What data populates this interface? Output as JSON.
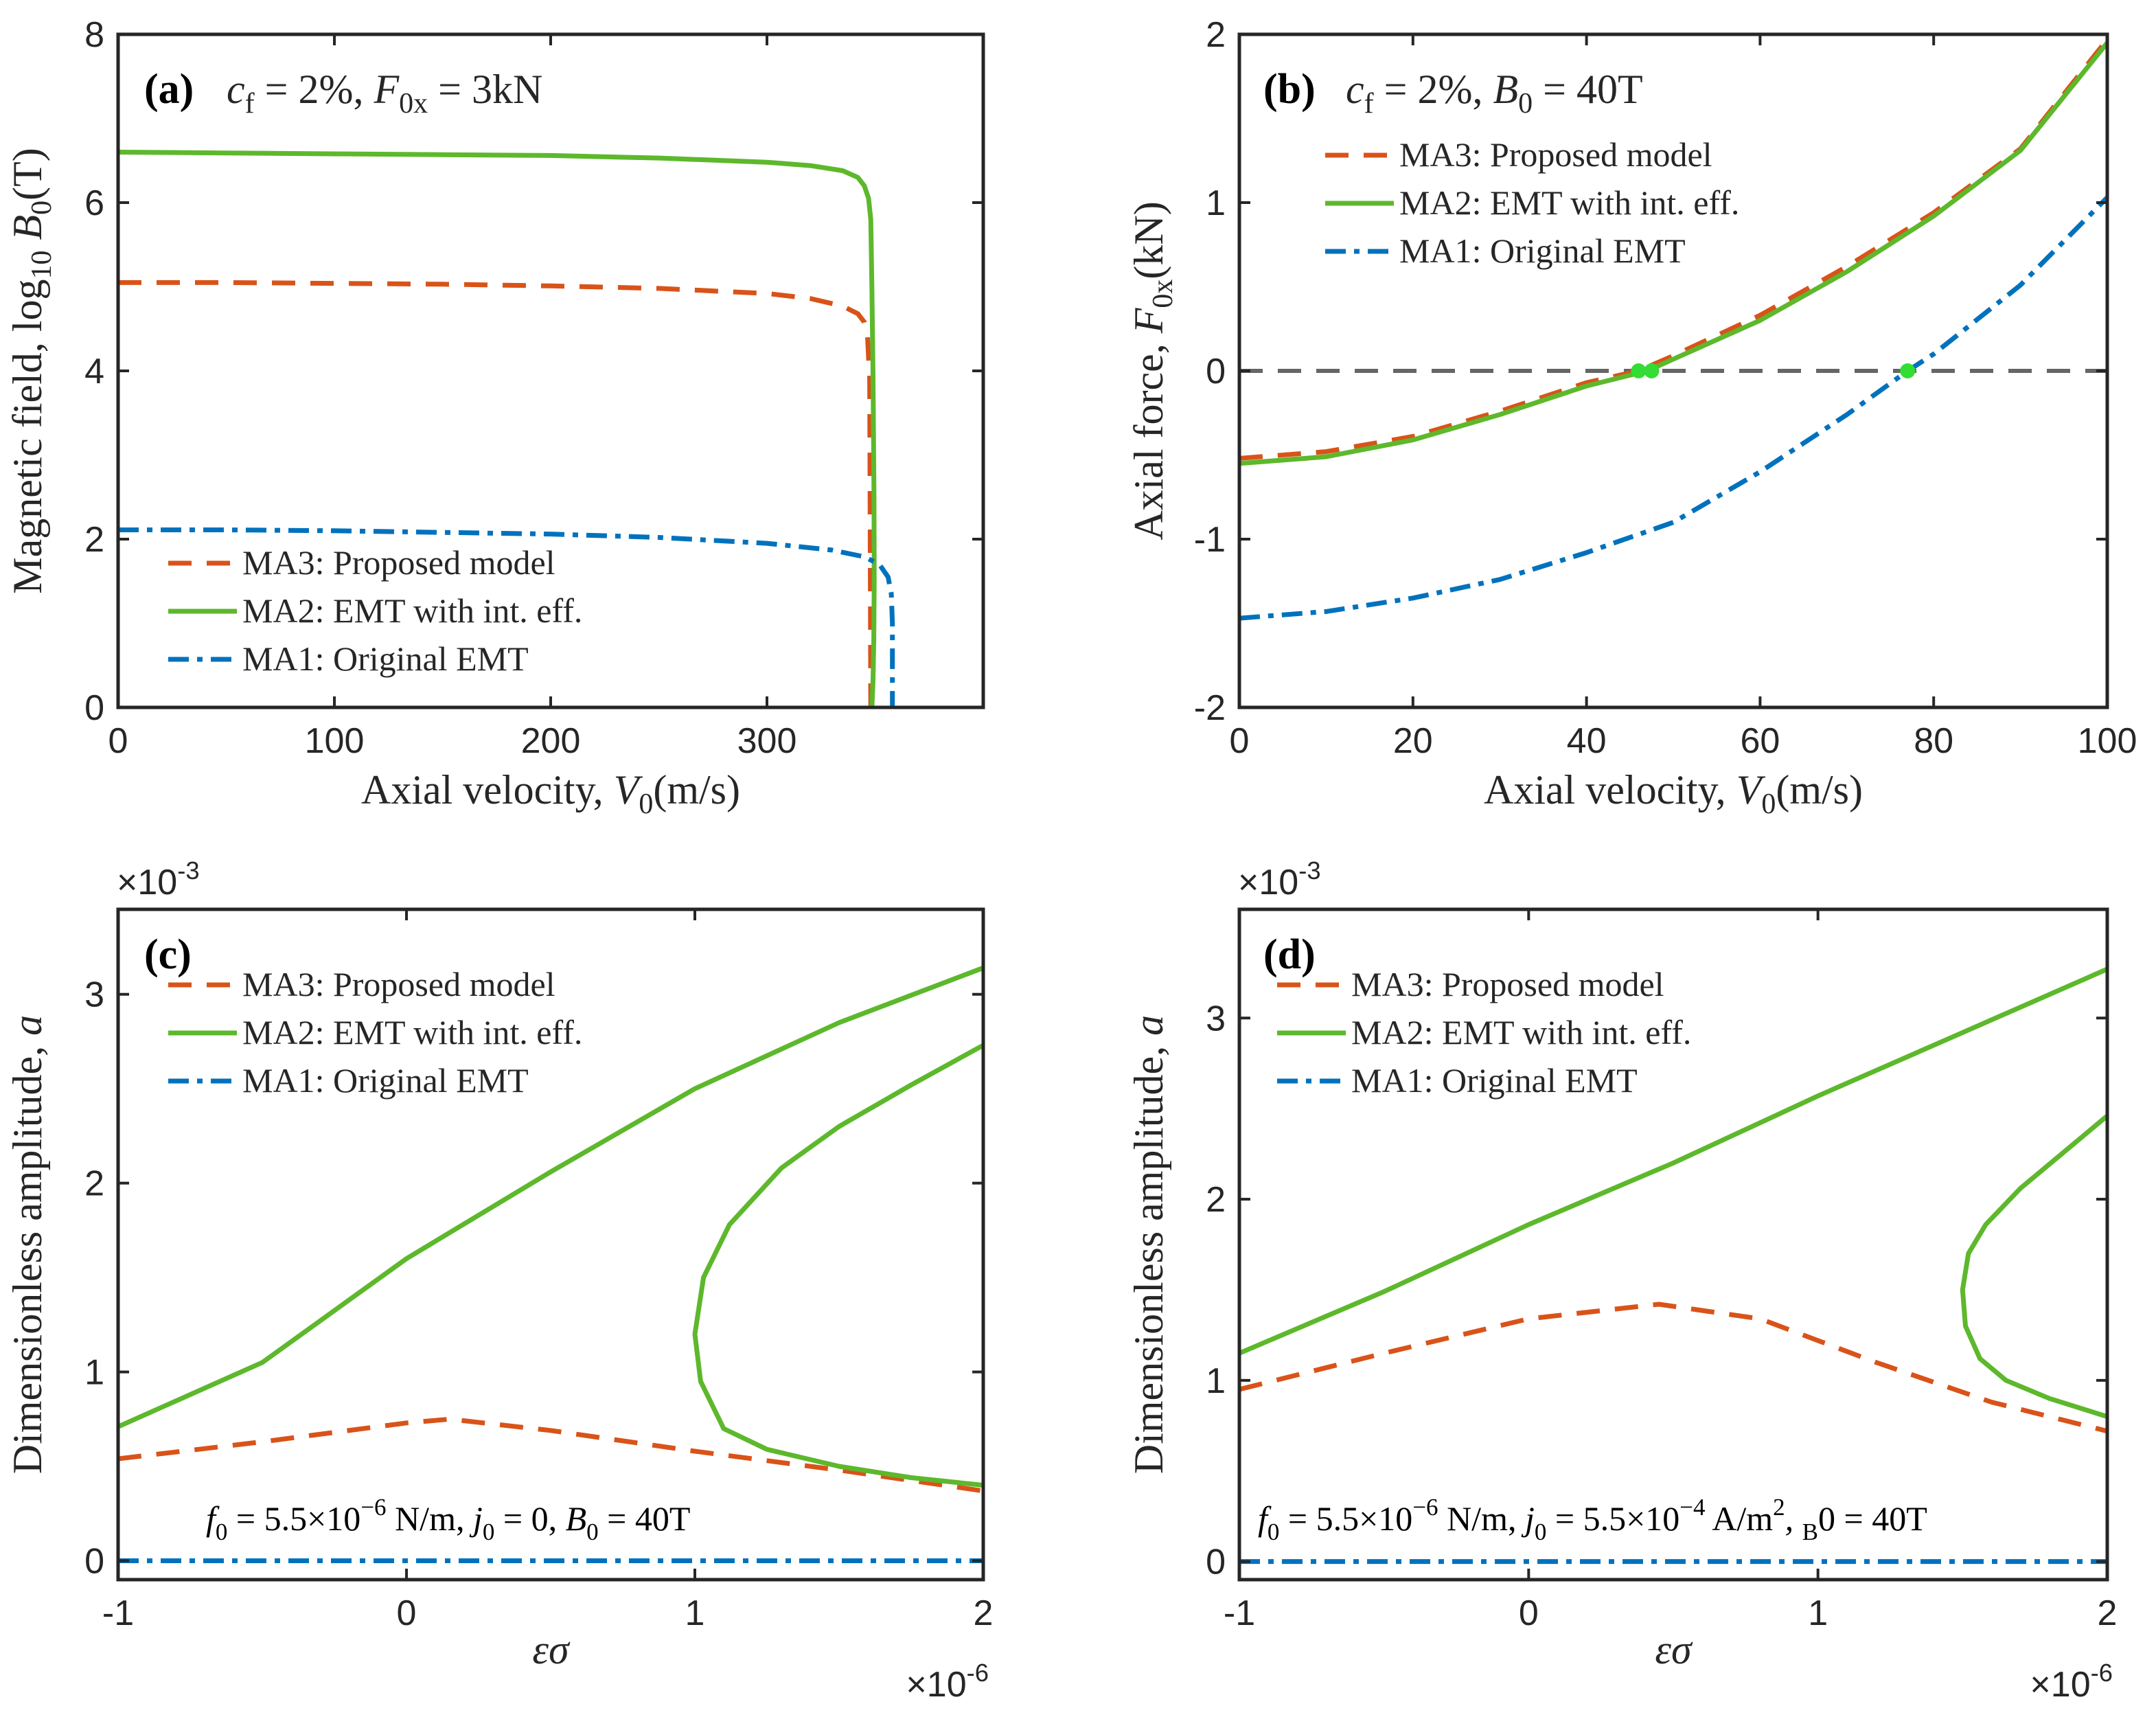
{
  "colors": {
    "ma3": "#D95319",
    "ma2": "#5DB82C",
    "ma1": "#0072BD",
    "ref": "#666666",
    "marker": "#33DD33"
  },
  "legend": {
    "ma3": "MA3:  Proposed model",
    "ma2": "MA2:  EMT with int.  eff.",
    "ma1": "MA1:  Original EMT"
  },
  "chart_data": [
    {
      "id": "a",
      "type": "line",
      "panel_tag": "(a)",
      "annotation": {
        "text": "c_f = 2%, F_0x = 3kN",
        "parts": [
          "c",
          "f",
          " = 2%, ",
          "F",
          "0x",
          " = 3kN"
        ]
      },
      "xlabel": {
        "text": "Axial velocity, V0(m/s)",
        "parts": [
          "Axial velocity, ",
          "V",
          "0",
          "(m/s)"
        ]
      },
      "ylabel": {
        "text": "Magnetic field, log10 B0(T)",
        "parts": [
          "Magnetic field, log",
          "10",
          " ",
          "B",
          "0",
          "(T)"
        ]
      },
      "xlim": [
        0,
        400
      ],
      "ylim": [
        0,
        8
      ],
      "xticks": [
        0,
        100,
        200,
        300
      ],
      "yticks": [
        0,
        2,
        4,
        6,
        8
      ],
      "series": [
        {
          "name": "MA3",
          "x": [
            0,
            50,
            100,
            150,
            200,
            250,
            300,
            320,
            335,
            342,
            345,
            346.5,
            347.5,
            348
          ],
          "y": [
            5.05,
            5.05,
            5.04,
            5.03,
            5.01,
            4.98,
            4.92,
            4.86,
            4.77,
            4.68,
            4.58,
            4.4,
            3.9,
            0
          ]
        },
        {
          "name": "MA2",
          "x": [
            0,
            50,
            100,
            150,
            200,
            250,
            300,
            320,
            335,
            342,
            345,
            347,
            348,
            348.5,
            349,
            349.5,
            349.6,
            349.4,
            349,
            348.5
          ],
          "y": [
            6.6,
            6.59,
            6.58,
            6.57,
            6.56,
            6.53,
            6.48,
            6.44,
            6.38,
            6.3,
            6.2,
            6.05,
            5.8,
            5.0,
            4.0,
            2.5,
            1.5,
            0.8,
            0.3,
            0
          ]
        },
        {
          "name": "MA1",
          "x": [
            0,
            50,
            100,
            150,
            200,
            250,
            300,
            330,
            345,
            352,
            356,
            357.5,
            358,
            358,
            358
          ],
          "y": [
            2.11,
            2.11,
            2.1,
            2.08,
            2.06,
            2.02,
            1.95,
            1.87,
            1.79,
            1.7,
            1.55,
            1.35,
            1.0,
            0.5,
            0
          ]
        }
      ]
    },
    {
      "id": "b",
      "type": "line",
      "panel_tag": "(b)",
      "annotation": {
        "text": "c_f = 2%, B_0 = 40T",
        "parts": [
          "c",
          "f",
          " = 2%, ",
          "B",
          "0",
          " = 40T"
        ]
      },
      "xlabel": {
        "text": "Axial velocity, V0(m/s)",
        "parts": [
          "Axial velocity, ",
          "V",
          "0",
          "(m/s)"
        ]
      },
      "ylabel": {
        "text": "Axial force, F0x(kN)",
        "parts": [
          "Axial force, ",
          "F",
          "0x",
          "(kN)"
        ]
      },
      "xlim": [
        0,
        100
      ],
      "ylim": [
        -2,
        2
      ],
      "xticks": [
        0,
        20,
        40,
        60,
        80,
        100
      ],
      "yticks": [
        -2,
        -1,
        0,
        1,
        2
      ],
      "series": [
        {
          "name": "MA3",
          "x": [
            0,
            10,
            20,
            30,
            40,
            46,
            50,
            60,
            70,
            80,
            90,
            100
          ],
          "y": [
            -0.52,
            -0.48,
            -0.39,
            -0.24,
            -0.07,
            0.0,
            0.09,
            0.33,
            0.62,
            0.94,
            1.32,
            1.97
          ]
        },
        {
          "name": "MA2",
          "x": [
            0,
            10,
            20,
            30,
            40,
            47,
            50,
            60,
            70,
            80,
            90,
            100
          ],
          "y": [
            -0.55,
            -0.51,
            -0.41,
            -0.26,
            -0.09,
            0.0,
            0.07,
            0.3,
            0.59,
            0.92,
            1.31,
            1.95
          ]
        },
        {
          "name": "MA1",
          "x": [
            0,
            10,
            20,
            30,
            40,
            50,
            60,
            70,
            77,
            80,
            90,
            100
          ],
          "y": [
            -1.47,
            -1.43,
            -1.35,
            -1.24,
            -1.08,
            -0.9,
            -0.6,
            -0.26,
            0.0,
            0.1,
            0.51,
            1.03
          ]
        }
      ],
      "reference_line": {
        "y": 0
      },
      "markers": [
        {
          "x": 46,
          "y": 0
        },
        {
          "x": 47.5,
          "y": 0
        },
        {
          "x": 77,
          "y": 0
        }
      ]
    },
    {
      "id": "c",
      "type": "line",
      "panel_tag": "(c)",
      "annotation": {
        "text": "f0 = 5.5×10^-6 N/m, j0 = 0, B0 = 40T",
        "parts": [
          "f",
          "0",
          " = 5.5×10",
          "−6",
          " N/m, ",
          "j",
          "0",
          " = 0, ",
          "B",
          "0",
          " = 40T"
        ]
      },
      "xlabel": {
        "text": "εσ",
        "parts": [
          "εσ"
        ]
      },
      "ylabel": {
        "text": "Dimensionless amplitude, a",
        "parts": [
          "Dimensionless amplitude, ",
          "a"
        ]
      },
      "x_multiplier": "×10^-6",
      "x_multiplier_parts": [
        "×10",
        "-6"
      ],
      "y_multiplier": "×10^-3",
      "y_multiplier_parts": [
        "×10",
        "-3"
      ],
      "xlim": [
        -1,
        2
      ],
      "ylim": [
        -0.1,
        3.45
      ],
      "xticks": [
        -1,
        0,
        1,
        2
      ],
      "yticks": [
        0,
        1,
        2,
        3
      ],
      "series": [
        {
          "name": "MA3",
          "x": [
            -1,
            -0.5,
            0,
            0.15,
            0.5,
            1,
            1.5,
            2
          ],
          "y": [
            0.54,
            0.63,
            0.73,
            0.75,
            0.69,
            0.58,
            0.48,
            0.37
          ]
        },
        {
          "name": "MA2 (upper)",
          "x": [
            -1,
            -0.5,
            0,
            0.5,
            1,
            1.5,
            2
          ],
          "y": [
            0.71,
            1.05,
            1.6,
            2.06,
            2.5,
            2.85,
            3.14
          ]
        },
        {
          "name": "MA2 (lower)",
          "x": [
            2,
            1.75,
            1.5,
            1.25,
            1.1,
            1.02,
            1.0,
            1.03,
            1.12,
            1.3,
            1.5,
            1.75,
            2
          ],
          "y": [
            0.4,
            0.44,
            0.5,
            0.59,
            0.7,
            0.95,
            1.2,
            1.5,
            1.78,
            2.08,
            2.3,
            2.52,
            2.73
          ]
        },
        {
          "name": "MA1",
          "x": [
            -1,
            2
          ],
          "y": [
            0,
            0
          ]
        }
      ]
    },
    {
      "id": "d",
      "type": "line",
      "panel_tag": "(d)",
      "annotation": {
        "text": "f0 = 5.5×10^-6 N/m, j0 = 5.5×10^-4 A/m^2, B0 = 40T",
        "parts": [
          "f",
          "0",
          " = 5.5×10",
          "−6",
          " N/m, ",
          "j",
          "0",
          " = 5.5×10",
          "−4",
          " A/m",
          "2",
          ", ",
          "B",
          "0",
          " = 40T"
        ]
      },
      "xlabel": {
        "text": "εσ",
        "parts": [
          "εσ"
        ]
      },
      "ylabel": {
        "text": "Dimensionless amplitude, a",
        "parts": [
          "Dimensionless amplitude, ",
          "a"
        ]
      },
      "x_multiplier": "×10^-6",
      "x_multiplier_parts": [
        "×10",
        "-6"
      ],
      "y_multiplier": "×10^-3",
      "y_multiplier_parts": [
        "×10",
        "-3"
      ],
      "xlim": [
        -1,
        2
      ],
      "ylim": [
        -0.1,
        3.6
      ],
      "xticks": [
        -1,
        0,
        1,
        2
      ],
      "yticks": [
        0,
        1,
        2,
        3
      ],
      "series": [
        {
          "name": "MA3",
          "x": [
            -1,
            -0.5,
            0,
            0.45,
            0.8,
            1.2,
            1.6,
            2
          ],
          "y": [
            0.95,
            1.15,
            1.34,
            1.42,
            1.34,
            1.1,
            0.88,
            0.72
          ]
        },
        {
          "name": "MA2 (upper)",
          "x": [
            -1,
            -0.5,
            0,
            0.5,
            1,
            1.5,
            2
          ],
          "y": [
            1.15,
            1.49,
            1.86,
            2.2,
            2.57,
            2.92,
            3.27
          ]
        },
        {
          "name": "MA2 (lower)",
          "x": [
            2,
            1.8,
            1.65,
            1.56,
            1.51,
            1.5,
            1.52,
            1.58,
            1.7,
            1.85,
            2
          ],
          "y": [
            0.8,
            0.9,
            1.0,
            1.12,
            1.3,
            1.5,
            1.7,
            1.86,
            2.06,
            2.26,
            2.46
          ]
        },
        {
          "name": "MA1",
          "x": [
            -1,
            2
          ],
          "y": [
            0,
            0
          ]
        }
      ]
    }
  ]
}
